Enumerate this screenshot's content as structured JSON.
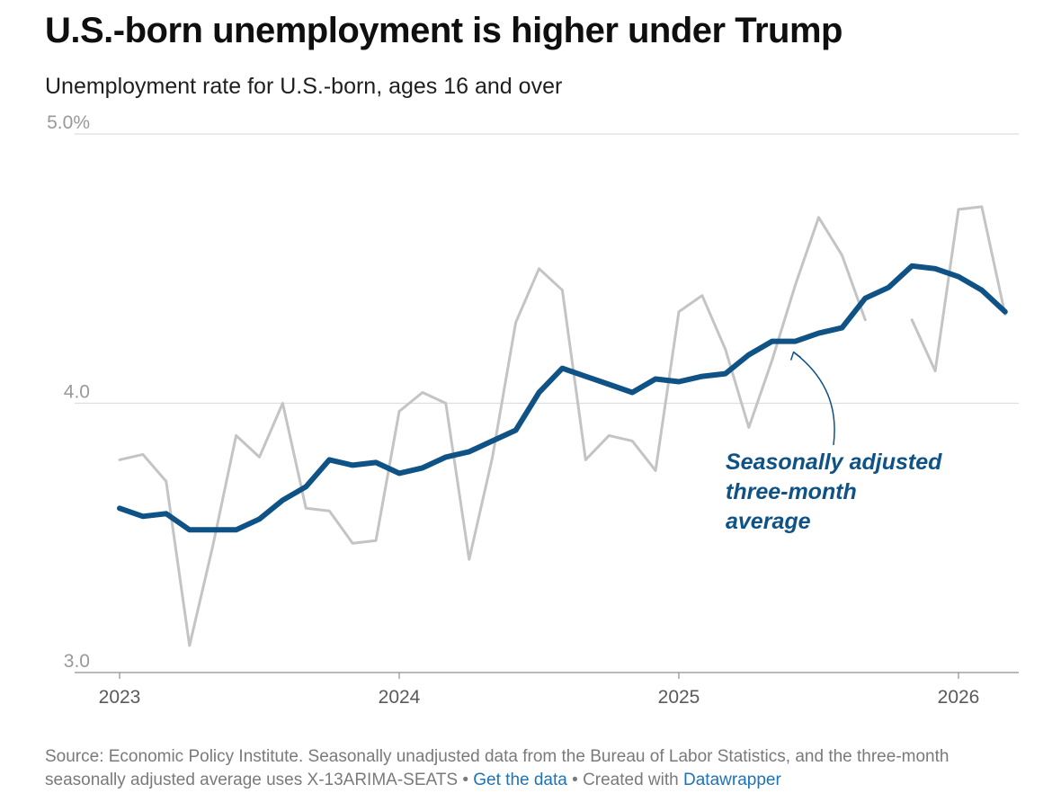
{
  "title": "U.S.-born unemployment is higher under Trump",
  "subtitle": "Unemployment rate for U.S.-born, ages 16 and over",
  "colors": {
    "raw": "#c4c4c4",
    "avg": "#0e5286",
    "grid": "#dedede",
    "axis": "#999999",
    "link": "#1d73b8"
  },
  "chart_data": {
    "type": "line",
    "title": "U.S.-born unemployment is higher under Trump",
    "subtitle": "Unemployment rate for U.S.-born, ages 16 and over",
    "xlabel": "",
    "ylabel": "",
    "ylim": [
      3.0,
      5.0
    ],
    "y_ticks": [
      {
        "value": 5.0,
        "label": "5.0%"
      },
      {
        "value": 4.0,
        "label": "4.0"
      },
      {
        "value": 3.0,
        "label": "3.0"
      }
    ],
    "x_range": [
      2023.0,
      2026.25
    ],
    "x_ticks": [
      {
        "value": 2023.0,
        "label": "2023"
      },
      {
        "value": 2024.0,
        "label": "2024"
      },
      {
        "value": 2025.0,
        "label": "2025"
      },
      {
        "value": 2026.0,
        "label": "2026"
      }
    ],
    "series": [
      {
        "name": "Seasonally unadjusted",
        "color": "#c4c4c4",
        "segments": [
          {
            "x": [
              2023.0,
              2023.0833,
              2023.1667,
              2023.25,
              2023.3333,
              2023.4167,
              2023.5,
              2023.5833,
              2023.6667,
              2023.75,
              2023.8333,
              2023.9167,
              2024.0,
              2024.0833,
              2024.1667,
              2024.25,
              2024.3333,
              2024.4167,
              2024.5,
              2024.5833,
              2024.6667,
              2024.75,
              2024.8333,
              2024.9167,
              2025.0,
              2025.0833,
              2025.1667,
              2025.25,
              2025.3333,
              2025.4167,
              2025.5,
              2025.5833,
              2025.6667
            ],
            "y": [
              3.79,
              3.81,
              3.71,
              3.1,
              3.47,
              3.88,
              3.8,
              4.0,
              3.61,
              3.6,
              3.48,
              3.49,
              3.97,
              4.04,
              4.0,
              3.42,
              3.8,
              4.3,
              4.5,
              4.42,
              3.79,
              3.88,
              3.86,
              3.75,
              4.34,
              4.4,
              4.2,
              3.91,
              4.16,
              4.44,
              4.69,
              4.55,
              4.31
            ]
          },
          {
            "x": [
              2025.8333,
              2025.9167,
              2026.0,
              2026.0833,
              2026.1667
            ],
            "y": [
              4.31,
              4.12,
              4.72,
              4.73,
              4.33
            ]
          }
        ]
      },
      {
        "name": "Seasonally adjusted three-month average",
        "color": "#0e5286",
        "segments": [
          {
            "x": [
              2023.0,
              2023.0833,
              2023.1667,
              2023.25,
              2023.3333,
              2023.4167,
              2023.5,
              2023.5833,
              2023.6667,
              2023.75,
              2023.8333,
              2023.9167,
              2024.0,
              2024.0833,
              2024.1667,
              2024.25,
              2024.3333,
              2024.4167,
              2024.5,
              2024.5833,
              2024.6667,
              2024.75,
              2024.8333,
              2024.9167,
              2025.0,
              2025.0833,
              2025.1667,
              2025.25,
              2025.3333,
              2025.4167,
              2025.5,
              2025.5833,
              2025.6667,
              2025.75,
              2025.8333,
              2025.9167,
              2026.0,
              2026.0833,
              2026.1667
            ],
            "y": [
              3.61,
              3.58,
              3.59,
              3.53,
              3.53,
              3.53,
              3.57,
              3.64,
              3.69,
              3.79,
              3.77,
              3.78,
              3.74,
              3.76,
              3.8,
              3.82,
              3.86,
              3.9,
              4.04,
              4.13,
              4.1,
              4.07,
              4.04,
              4.09,
              4.08,
              4.1,
              4.11,
              4.18,
              4.23,
              4.23,
              4.26,
              4.28,
              4.39,
              4.43,
              4.51,
              4.5,
              4.47,
              4.42,
              4.34
            ]
          }
        ]
      }
    ],
    "annotations": [
      {
        "lines": [
          "Seasonally adjusted",
          "three-month",
          "average"
        ],
        "target_x": 2025.4167,
        "target_y": 4.2
      }
    ]
  },
  "footer": {
    "source_text": "Source: Economic Policy Institute. Seasonally unadjusted data from the Bureau of Labor Statistics, and the three-month seasonally adjusted average uses X-13ARIMA-SEATS",
    "separator": " • ",
    "get_data_label": "Get the data",
    "created_text": "Created with ",
    "datawrapper_label": "Datawrapper"
  }
}
